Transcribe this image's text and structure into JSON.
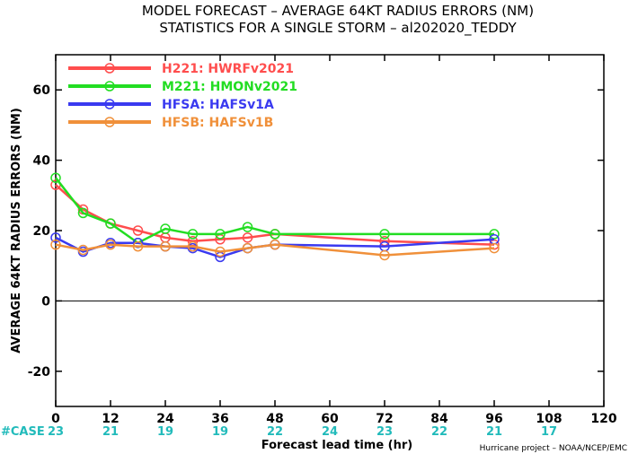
{
  "chart_data": {
    "type": "line",
    "title_line1": "MODEL FORECAST – AVERAGE 64KT RADIUS ERRORS (NM)",
    "title_line2": "STATISTICS FOR A SINGLE STORM – al202020_TEDDY",
    "xlabel": "Forecast lead time (hr)",
    "ylabel": "AVERAGE 64KT RADIUS ERRORS (NM)",
    "xlim": [
      0,
      120
    ],
    "ylim": [
      -30,
      70
    ],
    "x_ticks": [
      0,
      12,
      24,
      36,
      48,
      60,
      72,
      84,
      96,
      108,
      120
    ],
    "y_ticks": [
      -20,
      0,
      20,
      40,
      60
    ],
    "zero_line": true,
    "legend_position": "top-left",
    "series": [
      {
        "name": "H221:  HWRFv2021",
        "color": "#ff4d4d",
        "x": [
          0,
          6,
          12,
          18,
          24,
          30,
          36,
          42,
          48,
          72,
          96
        ],
        "y": [
          33,
          26,
          22,
          20,
          18,
          17,
          17.5,
          18,
          19,
          17,
          16
        ]
      },
      {
        "name": "M221:  HMONv2021",
        "color": "#22dd22",
        "x": [
          0,
          6,
          12,
          18,
          24,
          30,
          36,
          42,
          48,
          72,
          96
        ],
        "y": [
          35,
          25,
          22,
          16.5,
          20.5,
          19,
          19,
          21,
          19,
          19,
          19
        ]
      },
      {
        "name": "HFSA:  HAFSv1A",
        "color": "#3a3af0",
        "x": [
          0,
          6,
          12,
          18,
          24,
          30,
          36,
          42,
          48,
          72,
          96
        ],
        "y": [
          18,
          14,
          16.5,
          16.5,
          15.5,
          15,
          12.5,
          15,
          16,
          15.5,
          17.5
        ]
      },
      {
        "name": "HFSB:  HAFSv1B",
        "color": "#f0903a",
        "x": [
          0,
          6,
          12,
          18,
          24,
          30,
          36,
          42,
          48,
          72,
          96
        ],
        "y": [
          16,
          14.5,
          16,
          15.5,
          15.5,
          15.5,
          14,
          15,
          16,
          13,
          15
        ]
      }
    ],
    "case_label": "#CASE",
    "case_counts": [
      {
        "x": 0,
        "n": "23"
      },
      {
        "x": 12,
        "n": "21"
      },
      {
        "x": 24,
        "n": "19"
      },
      {
        "x": 36,
        "n": "19"
      },
      {
        "x": 48,
        "n": "22"
      },
      {
        "x": 60,
        "n": "24"
      },
      {
        "x": 72,
        "n": "23"
      },
      {
        "x": 84,
        "n": "22"
      },
      {
        "x": 96,
        "n": "21"
      },
      {
        "x": 108,
        "n": "17"
      }
    ],
    "credit": "Hurricane project – NOAA/NCEP/EMC",
    "colors": {
      "case_counts": "#22bbbb",
      "zero_line": "#000000"
    }
  }
}
